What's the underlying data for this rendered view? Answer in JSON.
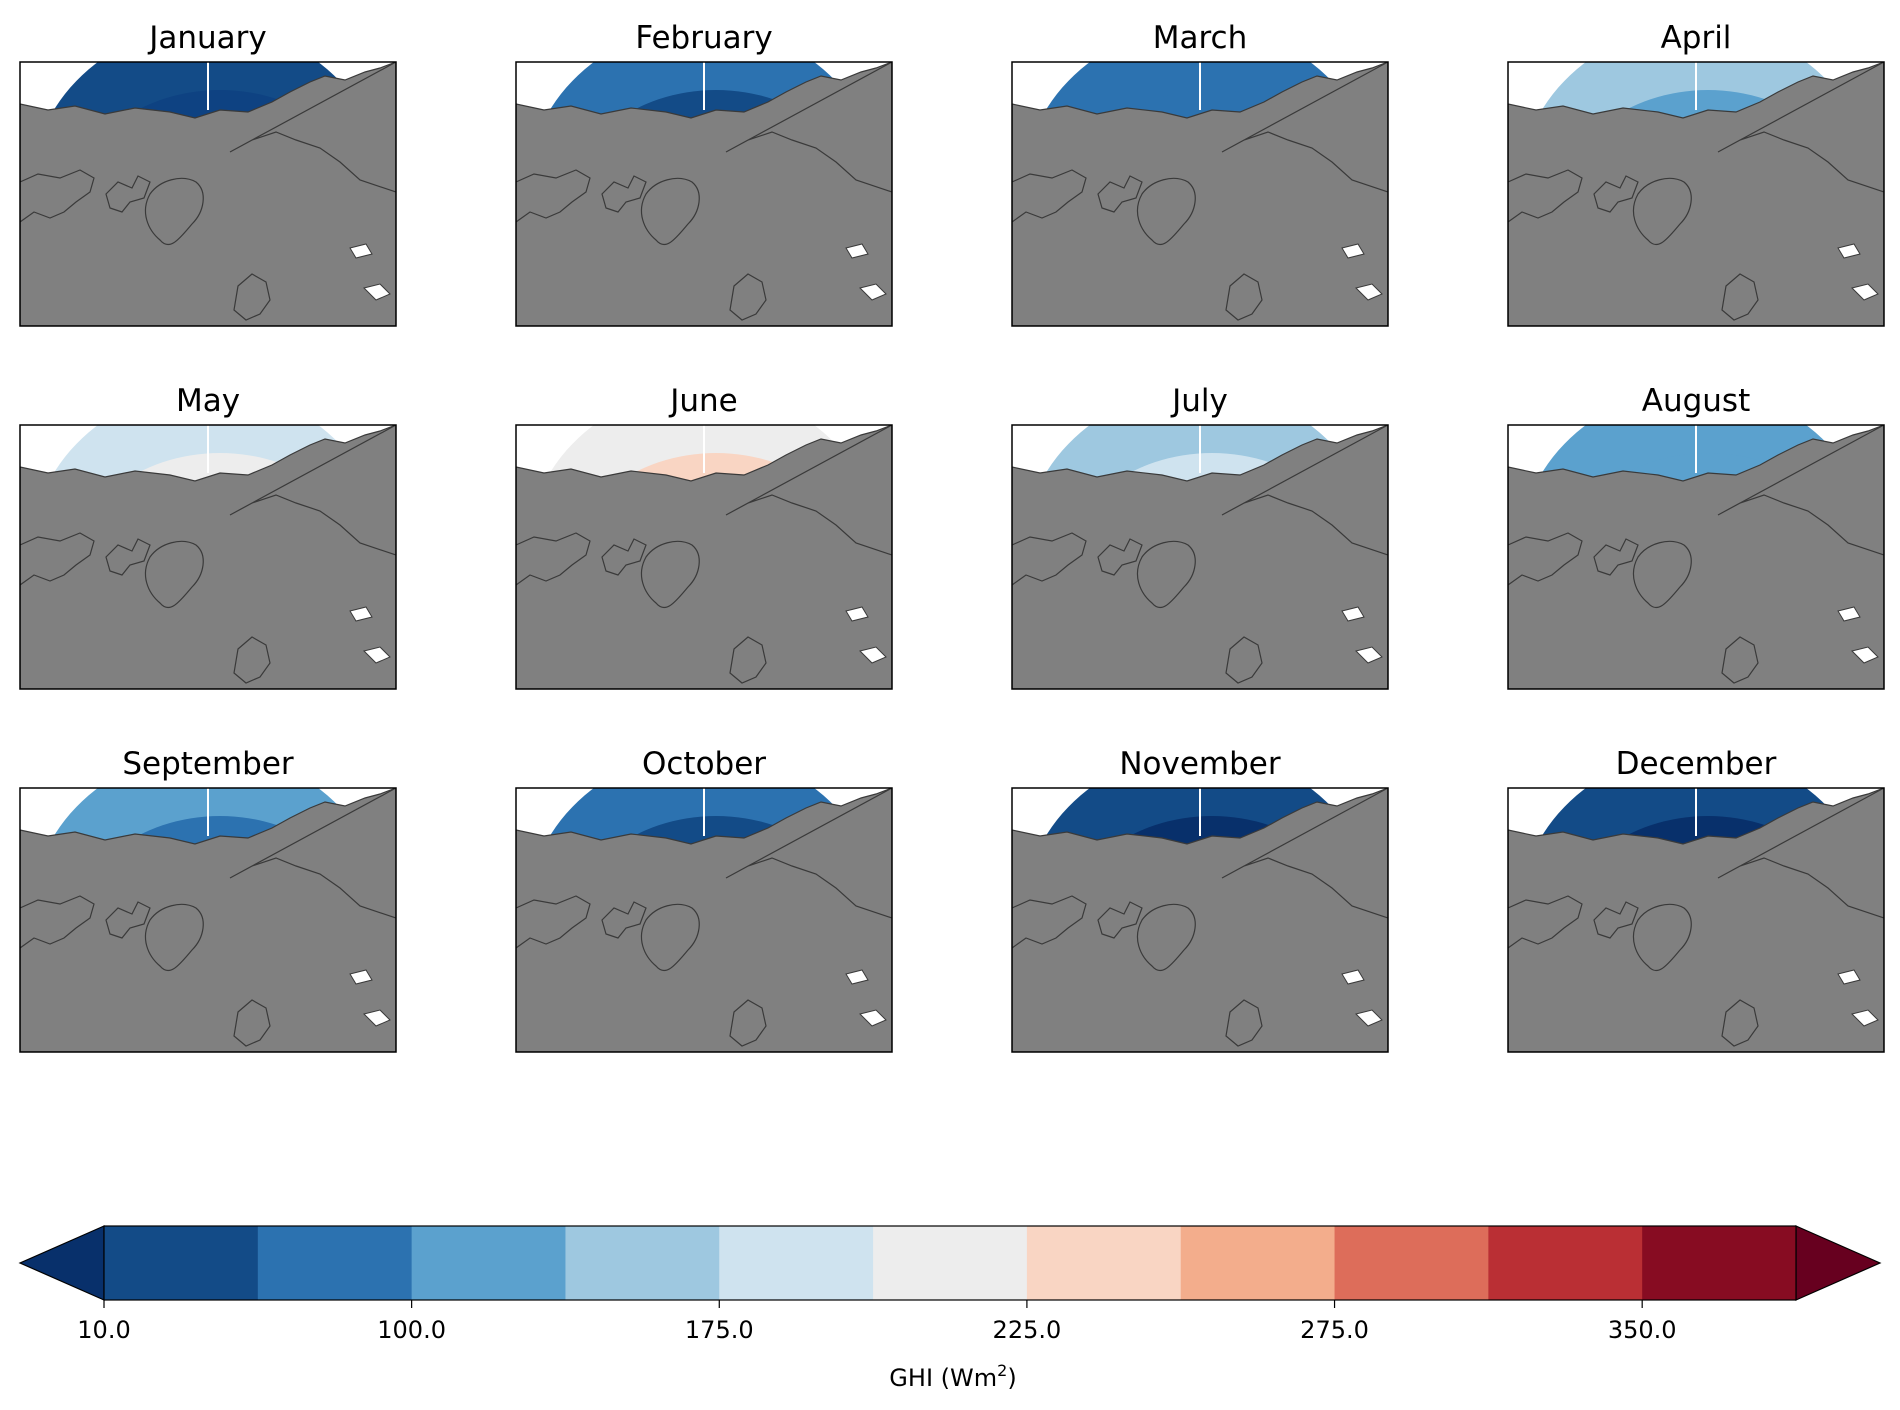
{
  "months": [
    {
      "name": "January",
      "polar": "#08306b",
      "mid": "#0e4282",
      "outer": "#134b87"
    },
    {
      "name": "February",
      "polar": "#08306b",
      "mid": "#134b87",
      "outer": "#2c72b0"
    },
    {
      "name": "March",
      "polar": "#134b87",
      "mid": "#2c72b0",
      "outer": "#2c72b0"
    },
    {
      "name": "April",
      "polar": "#5ba1ce",
      "mid": "#5ba1ce",
      "outer": "#9ec8e0"
    },
    {
      "name": "May",
      "polar": "#ededed",
      "mid": "#ededed",
      "outer": "#cfe3ef"
    },
    {
      "name": "June",
      "polar": "#f9d5c3",
      "mid": "#f9d5c3",
      "outer": "#ededed"
    },
    {
      "name": "July",
      "polar": "#cfe3ef",
      "mid": "#cfe3ef",
      "outer": "#9ec8e0"
    },
    {
      "name": "August",
      "polar": "#5ba1ce",
      "mid": "#5ba1ce",
      "outer": "#5ba1ce"
    },
    {
      "name": "September",
      "polar": "#134b87",
      "mid": "#2c72b0",
      "outer": "#5ba1ce"
    },
    {
      "name": "October",
      "polar": "#08306b",
      "mid": "#134b87",
      "outer": "#2c72b0"
    },
    {
      "name": "November",
      "polar": "#08306b",
      "mid": "#08306b",
      "outer": "#134b87"
    },
    {
      "name": "December",
      "polar": "#08306b",
      "mid": "#08306b",
      "outer": "#134b87"
    }
  ],
  "colorbar": {
    "label": "GHI (Wm",
    "label_sup": "2",
    "label_close": ")",
    "ticks": [
      "10.0",
      "100.0",
      "175.0",
      "225.0",
      "275.0",
      "350.0"
    ],
    "colors": [
      "#134b87",
      "#2c72b0",
      "#5ba1ce",
      "#9ec8e0",
      "#cfe3ef",
      "#ededed",
      "#f9d5c3",
      "#f3ad8c",
      "#dd6d5a",
      "#ba2f34",
      "#870c22"
    ],
    "under_color": "#08306b",
    "over_color": "#67001f",
    "extend": "both"
  },
  "land_color": "#808080",
  "ocean_empty_color": "#ffffff"
}
